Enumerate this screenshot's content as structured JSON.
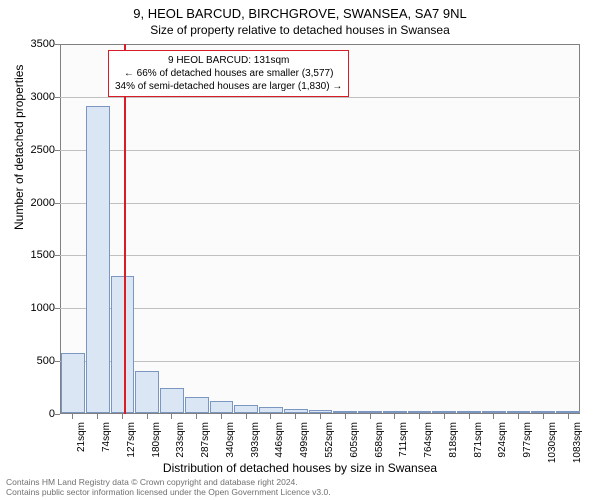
{
  "title_main": "9, HEOL BARCUD, BIRCHGROVE, SWANSEA, SA7 9NL",
  "title_sub": "Size of property relative to detached houses in Swansea",
  "y_axis_label": "Number of detached properties",
  "x_axis_label": "Distribution of detached houses by size in Swansea",
  "chart": {
    "type": "histogram",
    "background_color": "#fbfbfb",
    "grid_color": "#c0c0c0",
    "border_color": "#808080",
    "bar_fill": "#dbe6f5",
    "bar_border": "#7a96c1",
    "marker_color": "#d91d26",
    "ylim": [
      0,
      3500
    ],
    "ytick_step": 500,
    "x_labels": [
      "21sqm",
      "74sqm",
      "127sqm",
      "180sqm",
      "233sqm",
      "287sqm",
      "340sqm",
      "393sqm",
      "446sqm",
      "499sqm",
      "552sqm",
      "605sqm",
      "658sqm",
      "711sqm",
      "764sqm",
      "818sqm",
      "871sqm",
      "924sqm",
      "977sqm",
      "1030sqm",
      "1083sqm"
    ],
    "bar_values": [
      570,
      2900,
      1300,
      400,
      240,
      150,
      110,
      80,
      55,
      35,
      25,
      15,
      10,
      10,
      8,
      5,
      5,
      3,
      2,
      2,
      1
    ],
    "marker_position_sqm": 131,
    "annotation": {
      "lines": [
        "9 HEOL BARCUD: 131sqm",
        "← 66% of detached houses are smaller (3,577)",
        "34% of semi-detached houses are larger (1,830) →"
      ]
    }
  },
  "footer_line1": "Contains HM Land Registry data © Crown copyright and database right 2024.",
  "footer_line2": "Contains public sector information licensed under the Open Government Licence v3.0."
}
